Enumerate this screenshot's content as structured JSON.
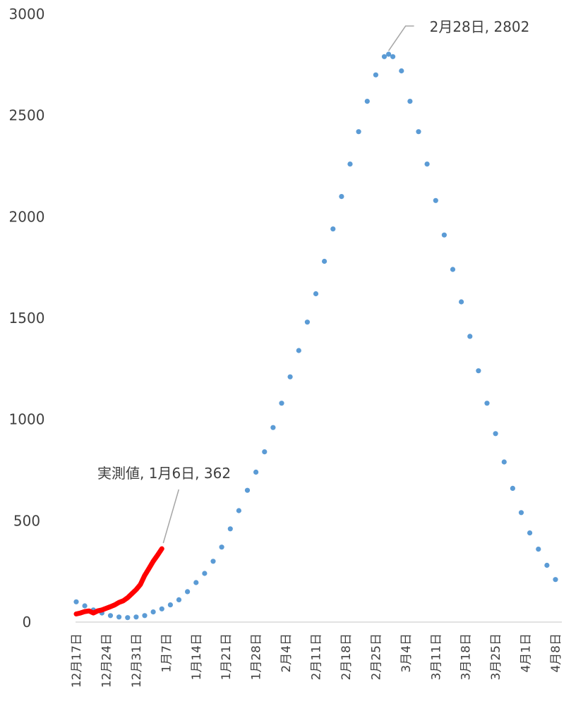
{
  "chart_data": {
    "type": "line",
    "title": "",
    "xlabel": "",
    "ylabel": "",
    "ylim": [
      0,
      3000
    ],
    "xlim": [
      "12月17日",
      "4月8日"
    ],
    "yticks": [
      "0",
      "500",
      "1000",
      "1500",
      "2000",
      "2500",
      "3000"
    ],
    "xticks": [
      "12月17日",
      "12月24日",
      "12月31日",
      "1月7日",
      "1月14日",
      "1月21日",
      "1月28日",
      "2月4日",
      "2月11日",
      "2月18日",
      "2月25日",
      "3月4日",
      "3月11日",
      "3月18日",
      "3月25日",
      "4月1日",
      "4月8日"
    ],
    "grid": false,
    "legend": "none",
    "series": [
      {
        "name": "",
        "style": "dotted",
        "color": "#5b9bd5",
        "x": [
          "12月17日",
          "12月19日",
          "12月21日",
          "12月23日",
          "12月25日",
          "12月27日",
          "12月29日",
          "12月31日",
          "1月2日",
          "1月4日",
          "1月6日",
          "1月8日",
          "1月10日",
          "1月12日",
          "1月14日",
          "1月16日",
          "1月18日",
          "1月20日",
          "1月22日",
          "1月24日",
          "1月26日",
          "1月28日",
          "1月30日",
          "2月1日",
          "2月3日",
          "2月5日",
          "2月7日",
          "2月9日",
          "2月11日",
          "2月13日",
          "2月15日",
          "2月17日",
          "2月19日",
          "2月21日",
          "2月23日",
          "2月25日",
          "2月27日",
          "2月28日",
          "3月1日",
          "3月3日",
          "3月5日",
          "3月7日",
          "3月9日",
          "3月11日",
          "3月13日",
          "3月15日",
          "3月17日",
          "3月19日",
          "3月21日",
          "3月23日",
          "3月25日",
          "3月27日",
          "3月29日",
          "3月31日",
          "4月2日",
          "4月4日",
          "4月6日",
          "4月8日"
        ],
        "values": [
          100,
          80,
          60,
          45,
          32,
          25,
          22,
          25,
          32,
          50,
          65,
          85,
          110,
          150,
          195,
          240,
          300,
          370,
          460,
          550,
          650,
          740,
          840,
          960,
          1080,
          1210,
          1340,
          1480,
          1620,
          1780,
          1940,
          2100,
          2260,
          2420,
          2570,
          2700,
          2790,
          2802,
          2790,
          2720,
          2570,
          2420,
          2260,
          2080,
          1910,
          1740,
          1580,
          1410,
          1240,
          1080,
          930,
          790,
          660,
          540,
          440,
          360,
          280,
          210
        ]
      },
      {
        "name": "実測値",
        "style": "solid",
        "color": "#ff0000",
        "x": [
          "12月17日",
          "12月18日",
          "12月19日",
          "12月20日",
          "12月21日",
          "12月22日",
          "12月23日",
          "12月24日",
          "12月25日",
          "12月26日",
          "12月27日",
          "12月28日",
          "12月29日",
          "12月30日",
          "12月31日",
          "1月1日",
          "1月2日",
          "1月3日",
          "1月4日",
          "1月5日",
          "1月6日"
        ],
        "values": [
          40,
          45,
          52,
          55,
          45,
          55,
          60,
          68,
          76,
          85,
          97,
          105,
          120,
          140,
          160,
          185,
          230,
          265,
          300,
          330,
          362
        ]
      }
    ],
    "annotations": [
      {
        "text": "2月28日, 2802",
        "x": "2月28日",
        "y": 2802
      },
      {
        "text": "実測値, 1月6日, 362",
        "x": "1月6日",
        "y": 362
      }
    ]
  }
}
